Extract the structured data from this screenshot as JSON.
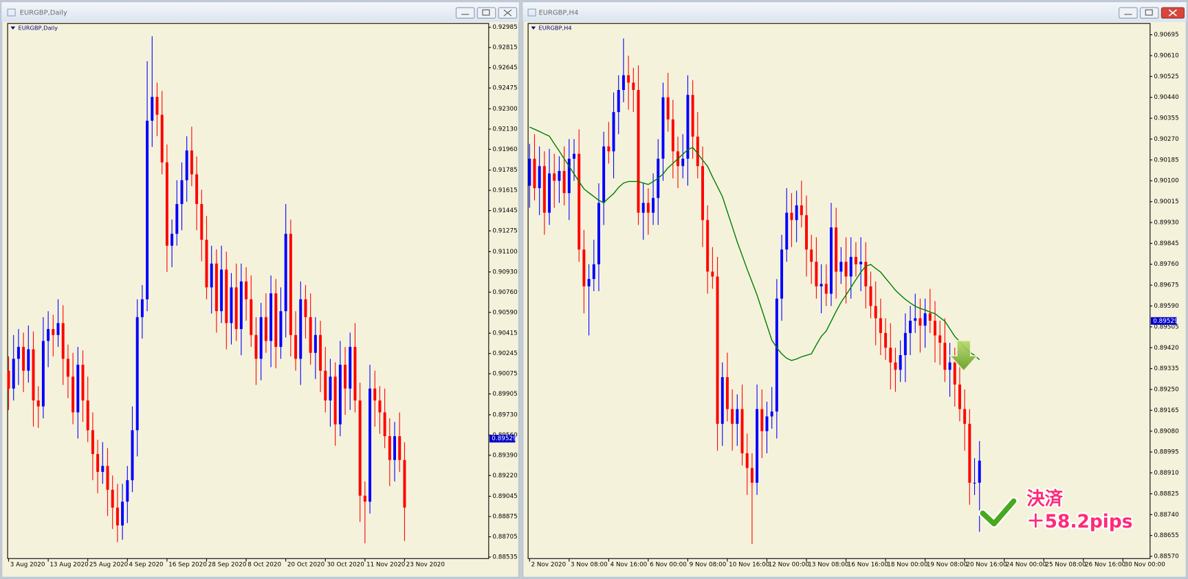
{
  "chart_data": [
    {
      "type": "candlestick",
      "title": "EURGBP,Daily",
      "xlim": [
        -0.2,
        97
      ],
      "ylim": [
        0.88522,
        0.93017
      ],
      "xticks": [
        {
          "value": 0,
          "label": "3 Aug 2020"
        },
        {
          "value": 8,
          "label": "13 Aug 2020"
        },
        {
          "value": 16,
          "label": "25 Aug 2020"
        },
        {
          "value": 24,
          "label": "4 Sep 2020"
        },
        {
          "value": 32,
          "label": "16 Sep 2020"
        },
        {
          "value": 40,
          "label": "28 Sep 2020"
        },
        {
          "value": 48,
          "label": "8 Oct 2020"
        },
        {
          "value": 56,
          "label": "20 Oct 2020"
        },
        {
          "value": 64,
          "label": "30 Oct 2020"
        },
        {
          "value": 72,
          "label": "11 Nov 2020"
        },
        {
          "value": 80,
          "label": "23 Nov 2020"
        }
      ],
      "yticks": [
        0.92985,
        0.92815,
        0.92645,
        0.92475,
        {
          "value": 0.923,
          "label": "0.92300"
        },
        {
          "value": 0.9213,
          "label": "0.92130"
        },
        {
          "value": 0.9196,
          "label": "0.91960"
        },
        0.91785,
        0.91615,
        0.91445,
        0.91275,
        {
          "value": 0.911,
          "label": "0.91100"
        },
        {
          "value": 0.9093,
          "label": "0.90930"
        },
        {
          "value": 0.9076,
          "label": "0.90760"
        },
        {
          "value": 0.9059,
          "label": "0.90590"
        },
        0.90415,
        0.90245,
        0.90075,
        0.89905,
        {
          "value": 0.8973,
          "label": "0.89730"
        },
        {
          "value": 0.8956,
          "label": "0.89560"
        },
        {
          "value": 0.8939,
          "label": "0.89390"
        },
        {
          "value": 0.8922,
          "label": "0.89220"
        },
        0.89045,
        0.88875,
        0.88705,
        0.88535
      ],
      "up_color": "#0000ff",
      "down_color": "#ff0000",
      "current_price": 0.89529,
      "current_price_color": "#0000c8",
      "open": [
        0.901,
        0.8995,
        0.902,
        0.903,
        0.901,
        0.9028,
        0.8985,
        0.898,
        0.9035,
        0.9045,
        0.904,
        0.905,
        0.902,
        0.9005,
        0.8975,
        0.9015,
        0.8985,
        0.896,
        0.894,
        0.8925,
        0.893,
        0.891,
        0.8895,
        0.888,
        0.89,
        0.8918,
        0.896,
        0.9055,
        0.907,
        0.922,
        0.924,
        0.9225,
        0.9185,
        0.9115,
        0.9125,
        0.915,
        0.917,
        0.9195,
        0.9175,
        0.915,
        0.912,
        0.908,
        0.91,
        0.906,
        0.9095,
        0.905,
        0.908,
        0.9045,
        0.9085,
        0.907,
        0.904,
        0.902,
        0.9055,
        0.9035,
        0.9075,
        0.903,
        0.906,
        0.9125,
        0.904,
        0.902,
        0.907,
        0.9055,
        0.9025,
        0.904,
        0.901,
        0.8985,
        0.9005,
        0.8965,
        0.9015,
        0.8995,
        0.903,
        0.8985,
        0.8905,
        0.89,
        0.8995,
        0.8985,
        0.8975,
        0.8955,
        0.8935,
        0.8955,
        0.8935
      ],
      "high": [
        0.9022,
        0.904,
        0.9045,
        0.9042,
        0.9048,
        0.9043,
        0.8997,
        0.9055,
        0.906,
        0.9057,
        0.907,
        0.9065,
        0.9032,
        0.9025,
        0.903,
        0.9027,
        0.9005,
        0.8975,
        0.8952,
        0.895,
        0.8945,
        0.8922,
        0.8915,
        0.8915,
        0.893,
        0.898,
        0.907,
        0.9082,
        0.927,
        0.9291,
        0.9252,
        0.9245,
        0.92,
        0.9137,
        0.917,
        0.9185,
        0.9207,
        0.9215,
        0.919,
        0.9162,
        0.914,
        0.9115,
        0.9112,
        0.9115,
        0.911,
        0.9092,
        0.91,
        0.91,
        0.9097,
        0.909,
        0.9055,
        0.9067,
        0.9075,
        0.909,
        0.9087,
        0.908,
        0.915,
        0.9137,
        0.906,
        0.9085,
        0.9082,
        0.9075,
        0.9055,
        0.9052,
        0.903,
        0.902,
        0.9017,
        0.9035,
        0.903,
        0.9042,
        0.905,
        0.9,
        0.8917,
        0.9015,
        0.901,
        0.8997,
        0.8995,
        0.897,
        0.8967,
        0.8975,
        0.895
      ],
      "low": [
        0.8977,
        0.8985,
        0.8998,
        0.8992,
        0.9,
        0.8963,
        0.8962,
        0.897,
        0.9013,
        0.9022,
        0.903,
        0.8998,
        0.8987,
        0.8965,
        0.8953,
        0.8967,
        0.895,
        0.8918,
        0.8907,
        0.8915,
        0.8888,
        0.8877,
        0.8866,
        0.8868,
        0.8882,
        0.8908,
        0.8938,
        0.9037,
        0.906,
        0.9198,
        0.9207,
        0.9175,
        0.9093,
        0.9097,
        0.9115,
        0.9128,
        0.9152,
        0.9165,
        0.9128,
        0.9102,
        0.907,
        0.9058,
        0.9042,
        0.905,
        0.9028,
        0.9032,
        0.9035,
        0.9023,
        0.9052,
        0.903,
        0.8998,
        0.9002,
        0.9025,
        0.9013,
        0.9012,
        0.902,
        0.9038,
        0.9022,
        0.901,
        0.8998,
        0.9037,
        0.9015,
        0.9003,
        0.8992,
        0.8975,
        0.8963,
        0.8947,
        0.8955,
        0.8973,
        0.8977,
        0.8975,
        0.8883,
        0.8865,
        0.889,
        0.8963,
        0.8957,
        0.8945,
        0.8913,
        0.8917,
        0.8925,
        0.8867
      ],
      "close": [
        0.8995,
        0.902,
        0.903,
        0.901,
        0.9028,
        0.8985,
        0.898,
        0.9035,
        0.9045,
        0.904,
        0.905,
        0.902,
        0.9005,
        0.8975,
        0.9015,
        0.8985,
        0.896,
        0.894,
        0.8925,
        0.893,
        0.891,
        0.8895,
        0.888,
        0.89,
        0.8918,
        0.896,
        0.9055,
        0.907,
        0.922,
        0.924,
        0.9225,
        0.9185,
        0.9115,
        0.9125,
        0.915,
        0.917,
        0.9195,
        0.9175,
        0.915,
        0.912,
        0.908,
        0.91,
        0.906,
        0.9095,
        0.905,
        0.908,
        0.9045,
        0.9085,
        0.907,
        0.904,
        0.902,
        0.9055,
        0.9035,
        0.9075,
        0.903,
        0.906,
        0.9125,
        0.904,
        0.902,
        0.907,
        0.9055,
        0.9025,
        0.904,
        0.901,
        0.8985,
        0.9005,
        0.8965,
        0.9015,
        0.8995,
        0.903,
        0.8985,
        0.8905,
        0.89,
        0.8995,
        0.8985,
        0.8975,
        0.8955,
        0.8935,
        0.8955,
        0.8935,
        0.8895
      ]
    },
    {
      "type": "candlestick",
      "title": "EURGBP,H4",
      "xlim": [
        -0.3,
        125.5
      ],
      "ylim": [
        0.88561,
        0.90741
      ],
      "xticks": [
        {
          "value": 0,
          "label": "2 Nov 2020"
        },
        {
          "value": 8,
          "label": "3 Nov 08:00"
        },
        {
          "value": 16,
          "label": "4 Nov 16:00"
        },
        {
          "value": 24,
          "label": "6 Nov 00:00"
        },
        {
          "value": 32,
          "label": "9 Nov 08:00"
        },
        {
          "value": 40,
          "label": "10 Nov 16:00"
        },
        {
          "value": 48,
          "label": "12 Nov 00:00"
        },
        {
          "value": 56,
          "label": "13 Nov 08:00"
        },
        {
          "value": 64,
          "label": "16 Nov 16:00"
        },
        {
          "value": 72,
          "label": "18 Nov 00:00"
        },
        {
          "value": 80,
          "label": "19 Nov 08:00"
        },
        {
          "value": 88,
          "label": "20 Nov 16:00"
        },
        {
          "value": 96,
          "label": "24 Nov 00:00"
        },
        {
          "value": 104,
          "label": "25 Nov 08:00"
        },
        {
          "value": 112,
          "label": "26 Nov 16:00"
        },
        {
          "value": 120,
          "label": "30 Nov 00:00"
        }
      ],
      "yticks": [
        0.90695,
        {
          "value": 0.9061,
          "label": "0.90610"
        },
        0.90525,
        {
          "value": 0.9044,
          "label": "0.90440"
        },
        0.90355,
        {
          "value": 0.9027,
          "label": "0.90270"
        },
        0.90185,
        {
          "value": 0.901,
          "label": "0.90100"
        },
        0.90015,
        {
          "value": 0.8993,
          "label": "0.89930"
        },
        0.89845,
        {
          "value": 0.8976,
          "label": "0.89760"
        },
        0.89675,
        {
          "value": 0.8959,
          "label": "0.89590"
        },
        0.89505,
        {
          "value": 0.8942,
          "label": "0.89420"
        },
        0.89335,
        {
          "value": 0.8925,
          "label": "0.89250"
        },
        0.89165,
        {
          "value": 0.8908,
          "label": "0.89080"
        },
        0.88995,
        {
          "value": 0.8891,
          "label": "0.88910"
        },
        0.88825,
        {
          "value": 0.8874,
          "label": "0.88740"
        },
        0.88655,
        {
          "value": 0.8857,
          "label": "0.88570"
        }
      ],
      "up_color": "#0000ff",
      "down_color": "#ff0000",
      "current_price": 0.89529,
      "current_price_color": "#0000c8",
      "open": [
        0.9008,
        0.9019,
        0.9007,
        0.9016,
        0.8997,
        0.9013,
        0.901,
        0.9014,
        0.9005,
        0.9019,
        0.9021,
        0.8982,
        0.8967,
        0.897,
        0.8976,
        0.9001,
        0.9024,
        0.9022,
        0.9038,
        0.9047,
        0.9053,
        0.905,
        0.9047,
        0.8997,
        0.9001,
        0.8997,
        0.9003,
        0.9019,
        0.9044,
        0.9035,
        0.9022,
        0.9016,
        0.9019,
        0.9045,
        0.9028,
        0.9016,
        0.8994,
        0.8973,
        0.8971,
        0.8911,
        0.893,
        0.8917,
        0.8911,
        0.8917,
        0.8899,
        0.8893,
        0.8887,
        0.8917,
        0.8908,
        0.8914,
        0.8916,
        0.8962,
        0.8982,
        0.8997,
        0.8994,
        0.9,
        0.8996,
        0.8982,
        0.8977,
        0.8967,
        0.8968,
        0.8964,
        0.8991,
        0.8973,
        0.8977,
        0.8971,
        0.8979,
        0.8976,
        0.8977,
        0.8967,
        0.8959,
        0.8954,
        0.8948,
        0.8942,
        0.8936,
        0.8933,
        0.8939,
        0.8948,
        0.8953,
        0.8954,
        0.8951,
        0.8956,
        0.8953,
        0.8947,
        0.8944,
        0.8933,
        0.8936,
        0.8927,
        0.8917,
        0.8911,
        0.8887,
        0.8887
      ],
      "high": [
        0.9025,
        0.9029,
        0.9024,
        0.9022,
        0.9023,
        0.9021,
        0.902,
        0.9024,
        0.9027,
        0.9027,
        0.9031,
        0.899,
        0.8976,
        0.8986,
        0.9009,
        0.903,
        0.9034,
        0.9046,
        0.9053,
        0.9068,
        0.9061,
        0.9056,
        0.9057,
        0.9009,
        0.9007,
        0.9013,
        0.9027,
        0.905,
        0.9054,
        0.9043,
        0.9028,
        0.9029,
        0.9053,
        0.9051,
        0.9038,
        0.9024,
        0.9,
        0.8983,
        0.8979,
        0.8936,
        0.894,
        0.8925,
        0.8923,
        0.8927,
        0.8907,
        0.8899,
        0.8927,
        0.8925,
        0.892,
        0.8926,
        0.897,
        0.8988,
        0.9007,
        0.9005,
        0.9006,
        0.901,
        0.9004,
        0.8988,
        0.8987,
        0.8976,
        0.8976,
        0.9001,
        0.8999,
        0.8983,
        0.8987,
        0.8987,
        0.8985,
        0.8987,
        0.8985,
        0.8973,
        0.8969,
        0.8962,
        0.8954,
        0.8952,
        0.8942,
        0.8945,
        0.8956,
        0.8959,
        0.8964,
        0.8962,
        0.8962,
        0.8966,
        0.8961,
        0.8953,
        0.8954,
        0.8944,
        0.8942,
        0.8937,
        0.8925,
        0.8917,
        0.8897,
        0.8904
      ],
      "low": [
        0.8999,
        0.9002,
        0.8996,
        0.8988,
        0.8992,
        0.8999,
        0.9001,
        0.9,
        0.8994,
        0.901,
        0.8977,
        0.8956,
        0.8947,
        0.8965,
        0.8965,
        0.8992,
        0.9017,
        0.9011,
        0.9029,
        0.9042,
        0.9039,
        0.9038,
        0.8992,
        0.8986,
        0.8988,
        0.8992,
        0.8992,
        0.901,
        0.903,
        0.9011,
        0.9007,
        0.9011,
        0.9008,
        0.9019,
        0.9011,
        0.8983,
        0.8964,
        0.8966,
        0.89,
        0.8902,
        0.8912,
        0.89,
        0.8902,
        0.8894,
        0.8882,
        0.8862,
        0.8882,
        0.8897,
        0.8899,
        0.8909,
        0.8905,
        0.8953,
        0.8977,
        0.8983,
        0.8985,
        0.8991,
        0.8971,
        0.8968,
        0.8962,
        0.8956,
        0.8959,
        0.8959,
        0.8962,
        0.8968,
        0.896,
        0.8962,
        0.8971,
        0.8965,
        0.8958,
        0.8954,
        0.8943,
        0.8939,
        0.8937,
        0.8925,
        0.8924,
        0.8928,
        0.8928,
        0.8939,
        0.8948,
        0.894,
        0.8942,
        0.8948,
        0.8936,
        0.8935,
        0.8928,
        0.8922,
        0.8918,
        0.8912,
        0.89,
        0.8878,
        0.8882,
        0.8867
      ],
      "close": [
        0.9019,
        0.9007,
        0.9016,
        0.8997,
        0.9013,
        0.901,
        0.9014,
        0.9005,
        0.9019,
        0.9021,
        0.8982,
        0.8967,
        0.897,
        0.8976,
        0.9001,
        0.9024,
        0.9022,
        0.9038,
        0.9047,
        0.9053,
        0.905,
        0.9047,
        0.8997,
        0.9001,
        0.8997,
        0.9003,
        0.9019,
        0.9044,
        0.9035,
        0.9022,
        0.9016,
        0.9019,
        0.9045,
        0.9028,
        0.9016,
        0.8994,
        0.8973,
        0.8971,
        0.8911,
        0.893,
        0.8917,
        0.8911,
        0.8917,
        0.8899,
        0.8893,
        0.8887,
        0.8917,
        0.8908,
        0.8914,
        0.8916,
        0.8962,
        0.8982,
        0.8997,
        0.8994,
        0.9,
        0.8996,
        0.8982,
        0.8977,
        0.8967,
        0.8968,
        0.8964,
        0.8991,
        0.8973,
        0.8977,
        0.8971,
        0.8979,
        0.8976,
        0.8977,
        0.8967,
        0.8959,
        0.8954,
        0.8948,
        0.8942,
        0.8936,
        0.8933,
        0.8939,
        0.8948,
        0.8953,
        0.8954,
        0.8951,
        0.8956,
        0.8953,
        0.8947,
        0.8944,
        0.8933,
        0.8936,
        0.8927,
        0.8917,
        0.8911,
        0.8887,
        0.8887,
        0.8896
      ],
      "line": {
        "color": "#008000",
        "values": [
          0.90319,
          0.9031,
          0.90301,
          0.90291,
          0.90282,
          0.90251,
          0.90221,
          0.9019,
          0.90159,
          0.90128,
          0.90097,
          0.90067,
          0.90051,
          0.90036,
          0.9002,
          0.90011,
          0.9003,
          0.90048,
          0.90073,
          0.90091,
          0.90097,
          0.90097,
          0.90097,
          0.90091,
          0.90085,
          0.90097,
          0.9011,
          0.90128,
          0.90153,
          0.90171,
          0.9019,
          0.90208,
          0.90227,
          0.90236,
          0.90211,
          0.90184,
          0.90159,
          0.90116,
          0.90076,
          0.90036,
          0.89974,
          0.89913,
          0.89851,
          0.89796,
          0.8974,
          0.89688,
          0.89635,
          0.89574,
          0.89512,
          0.89451,
          0.8942,
          0.89395,
          0.89377,
          0.89368,
          0.89374,
          0.89383,
          0.89389,
          0.89395,
          0.89432,
          0.89466,
          0.89488,
          0.89528,
          0.89568,
          0.89605,
          0.89635,
          0.89666,
          0.89697,
          0.89728,
          0.89752,
          0.89759,
          0.89743,
          0.89728,
          0.89703,
          0.89679,
          0.89654,
          0.89635,
          0.89617,
          0.89602,
          0.89589,
          0.8958,
          0.89574,
          0.89565,
          0.89559,
          0.89543,
          0.89528,
          0.89497,
          0.89466,
          0.89445,
          0.8942,
          0.89402,
          0.89389,
          0.89371
        ]
      },
      "annotations": [
        "決済",
        "＋58.2pips"
      ]
    }
  ]
}
